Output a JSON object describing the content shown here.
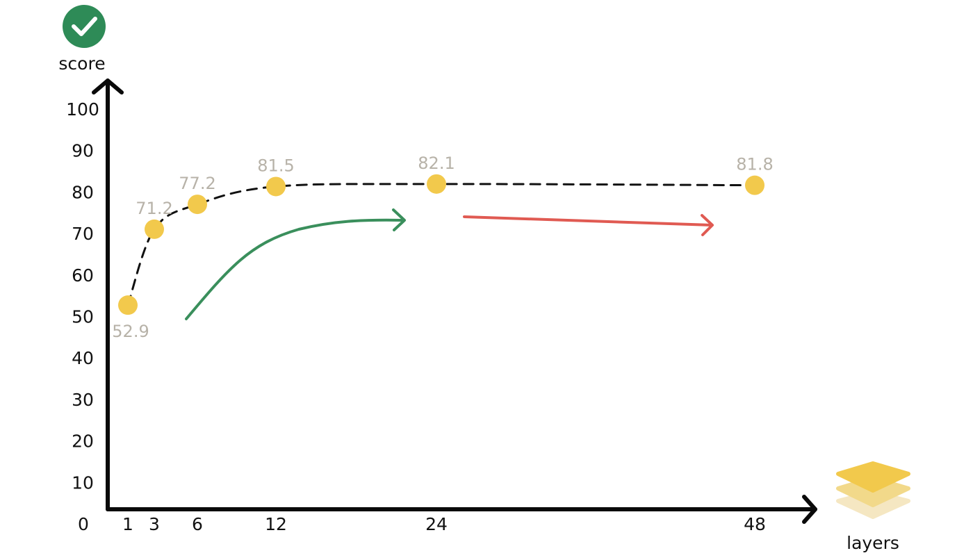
{
  "chart_data": {
    "type": "line",
    "title": "",
    "ylabel": "score",
    "xlabel": "layers",
    "x_ticks": [
      "1",
      "3",
      "6",
      "12",
      "24",
      "48"
    ],
    "y_ticks": [
      "0",
      "10",
      "20",
      "30",
      "40",
      "50",
      "60",
      "70",
      "80",
      "90",
      "100"
    ],
    "ylim": [
      0,
      100
    ],
    "series": [
      {
        "x": [
          1,
          3,
          6,
          12,
          24,
          48
        ],
        "y": [
          52.9,
          71.2,
          77.2,
          81.5,
          82.1,
          81.8
        ],
        "labels": [
          "52.9",
          "71.2",
          "77.2",
          "81.5",
          "82.1",
          "81.8"
        ]
      }
    ],
    "line_style": "dashed",
    "marker_color": "#f2c94c",
    "line_color": "#111111",
    "grid": false,
    "icons": {
      "ylabel_icon": "check-circle-icon",
      "xlabel_icon": "layers-stack-icon"
    },
    "annotations": [
      {
        "type": "trend-arrow-up",
        "color": "#3a8f5c"
      },
      {
        "type": "trend-arrow-flat",
        "color": "#e05a52"
      }
    ]
  }
}
